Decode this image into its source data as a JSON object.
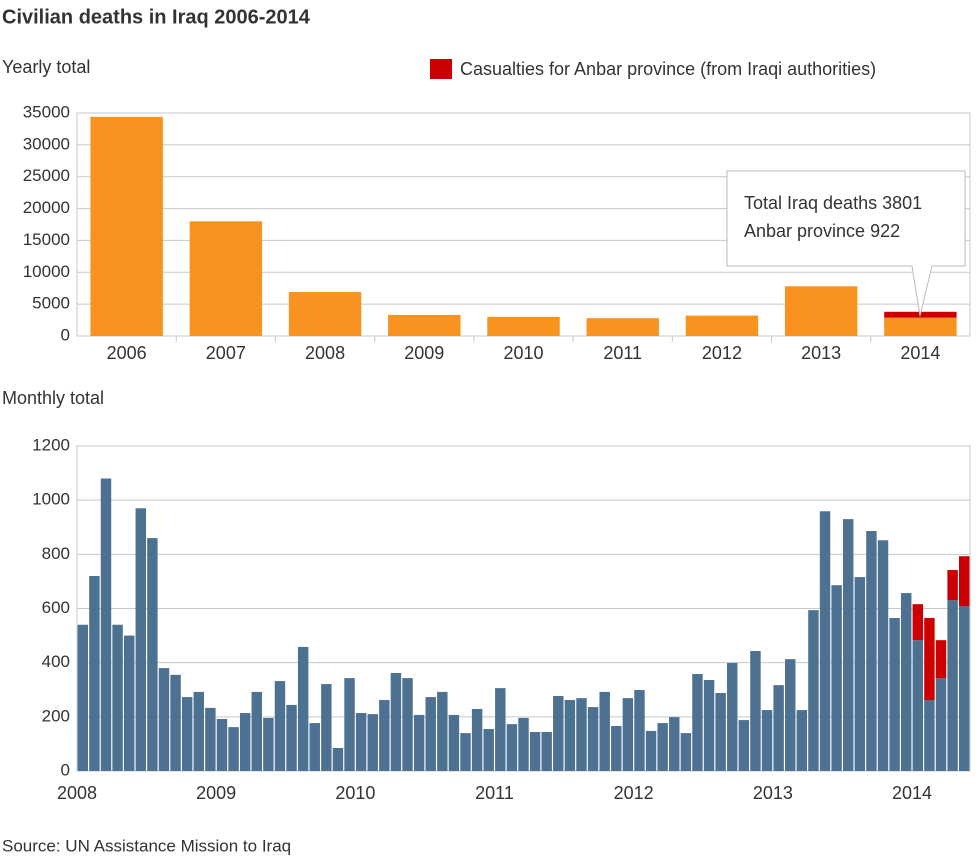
{
  "title": "Civilian deaths in Iraq 2006-2014",
  "source": "Source: UN Assistance Mission to Iraq",
  "chart_data": [
    {
      "type": "bar",
      "subtitle": "Yearly total",
      "categories": [
        "2006",
        "2007",
        "2008",
        "2009",
        "2010",
        "2011",
        "2012",
        "2013",
        "2014"
      ],
      "series": [
        {
          "color": "#f7931e",
          "values": [
            34400,
            18000,
            6900,
            3300,
            3000,
            2800,
            3200,
            7800,
            2879
          ]
        },
        {
          "name": "Casualties for Anbar province (from Iraqi authorities)",
          "color": "#cc0000",
          "values": [
            null,
            null,
            null,
            null,
            null,
            null,
            null,
            null,
            922
          ]
        }
      ],
      "annotation": [
        "Total Iraq deaths 3801",
        "Anbar province 922"
      ],
      "ylim": [
        0,
        35000
      ],
      "yticks": [
        0,
        5000,
        10000,
        15000,
        20000,
        25000,
        30000,
        35000
      ],
      "grid": true
    },
    {
      "type": "bar",
      "subtitle": "Monthly total",
      "categories": [
        "2008",
        null,
        null,
        null,
        null,
        null,
        null,
        null,
        null,
        null,
        null,
        null,
        "2009",
        null,
        null,
        null,
        null,
        null,
        null,
        null,
        null,
        null,
        null,
        null,
        "2010",
        null,
        null,
        null,
        null,
        null,
        null,
        null,
        null,
        null,
        null,
        null,
        "2011",
        null,
        null,
        null,
        null,
        null,
        null,
        null,
        null,
        null,
        null,
        null,
        "2012",
        null,
        null,
        null,
        null,
        null,
        null,
        null,
        null,
        null,
        null,
        null,
        "2013",
        null,
        null,
        null,
        null,
        null,
        null,
        null,
        null,
        null,
        null,
        null,
        "2014",
        null,
        null,
        null,
        null
      ],
      "series": [
        {
          "color": "#4d7190",
          "values": [
            540,
            720,
            1080,
            540,
            500,
            970,
            860,
            380,
            355,
            273,
            292,
            233,
            192,
            162,
            214,
            292,
            196,
            332,
            244,
            458,
            177,
            321,
            85,
            343,
            214,
            210,
            262,
            362,
            343,
            207,
            273,
            292,
            207,
            140,
            229,
            155,
            306,
            173,
            196,
            144,
            144,
            277,
            262,
            269,
            236,
            292,
            166,
            269,
            299,
            148,
            177,
            199,
            140,
            358,
            336,
            288,
            399,
            188,
            443,
            225,
            317,
            413,
            225,
            594,
            959,
            686,
            930,
            716,
            886,
            852,
            565,
            657,
            483,
            262,
            343,
            631,
            609
          ]
        },
        {
          "color": "#cc0000",
          "values": [
            null,
            null,
            null,
            null,
            null,
            null,
            null,
            null,
            null,
            null,
            null,
            null,
            null,
            null,
            null,
            null,
            null,
            null,
            null,
            null,
            null,
            null,
            null,
            null,
            null,
            null,
            null,
            null,
            null,
            null,
            null,
            null,
            null,
            null,
            null,
            null,
            null,
            null,
            null,
            null,
            null,
            null,
            null,
            null,
            null,
            null,
            null,
            null,
            null,
            null,
            null,
            null,
            null,
            null,
            null,
            null,
            null,
            null,
            null,
            null,
            null,
            null,
            null,
            null,
            null,
            null,
            null,
            null,
            null,
            null,
            null,
            null,
            133,
            303,
            140,
            111,
            184
          ]
        }
      ],
      "ylim": [
        0,
        1200
      ],
      "yticks": [
        0,
        200,
        400,
        600,
        800,
        1000,
        1200
      ],
      "grid": true
    }
  ]
}
